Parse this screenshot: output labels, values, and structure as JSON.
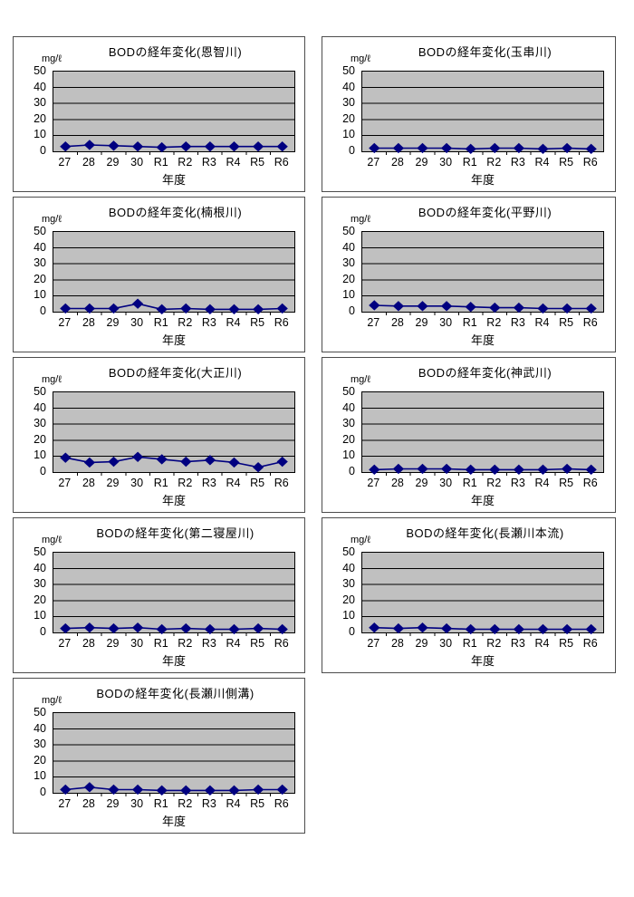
{
  "colors": {
    "page_background": "#ffffff",
    "card_border": "#4d4d4d",
    "plot_area_bg": "#c0c0c0",
    "plot_border": "#000000",
    "gridline": "#000000",
    "series_line": "#000080",
    "marker_fill": "#000080",
    "text": "#000000"
  },
  "style": {
    "marker_shape": "diamond",
    "legend": "none",
    "gridlines": "horizontal"
  },
  "axis": {
    "unit_label": "mg/ℓ",
    "xlabel": "年度",
    "ylim": [
      0,
      50
    ],
    "ytick_labels": [
      "50",
      "40",
      "30",
      "20",
      "10",
      "0"
    ],
    "categories": [
      "27",
      "28",
      "29",
      "30",
      "R1",
      "R2",
      "R3",
      "R4",
      "R5",
      "R6"
    ]
  },
  "chart_data": [
    {
      "type": "line",
      "title": "BODの経年変化(恩智川)",
      "river": "恩智川",
      "xlabel": "年度",
      "ylabel": "mg/ℓ",
      "ylim": [
        0,
        50
      ],
      "categories": [
        "27",
        "28",
        "29",
        "30",
        "R1",
        "R2",
        "R3",
        "R4",
        "R5",
        "R6"
      ],
      "values": [
        3,
        4,
        3.5,
        3,
        2.5,
        3,
        3,
        3,
        3,
        3
      ]
    },
    {
      "type": "line",
      "title": "BODの経年変化(玉串川)",
      "river": "玉串川",
      "xlabel": "年度",
      "ylabel": "mg/ℓ",
      "ylim": [
        0,
        50
      ],
      "categories": [
        "27",
        "28",
        "29",
        "30",
        "R1",
        "R2",
        "R3",
        "R4",
        "R5",
        "R6"
      ],
      "values": [
        2,
        2,
        2,
        2,
        1.5,
        2,
        2,
        1.5,
        2,
        1.5
      ]
    },
    {
      "type": "line",
      "title": "BODの経年変化(楠根川)",
      "river": "楠根川",
      "xlabel": "年度",
      "ylabel": "mg/ℓ",
      "ylim": [
        0,
        50
      ],
      "categories": [
        "27",
        "28",
        "29",
        "30",
        "R1",
        "R2",
        "R3",
        "R4",
        "R5",
        "R6"
      ],
      "values": [
        2,
        2,
        2,
        5,
        1.5,
        2,
        1.5,
        1.5,
        1.5,
        2
      ]
    },
    {
      "type": "line",
      "title": "BODの経年変化(平野川)",
      "river": "平野川",
      "xlabel": "年度",
      "ylabel": "mg/ℓ",
      "ylim": [
        0,
        50
      ],
      "categories": [
        "27",
        "28",
        "29",
        "30",
        "R1",
        "R2",
        "R3",
        "R4",
        "R5",
        "R6"
      ],
      "values": [
        4,
        3.5,
        3.5,
        3.5,
        3,
        2.5,
        2.5,
        2,
        2,
        2
      ]
    },
    {
      "type": "line",
      "title": "BODの経年変化(大正川)",
      "river": "大正川",
      "xlabel": "年度",
      "ylabel": "mg/ℓ",
      "ylim": [
        0,
        50
      ],
      "categories": [
        "27",
        "28",
        "29",
        "30",
        "R1",
        "R2",
        "R3",
        "R4",
        "R5",
        "R6"
      ],
      "values": [
        9,
        6,
        6.5,
        9.5,
        8,
        6.5,
        7.5,
        6,
        3,
        6.5
      ]
    },
    {
      "type": "line",
      "title": "BODの経年変化(神武川)",
      "river": "神武川",
      "xlabel": "年度",
      "ylabel": "mg/ℓ",
      "ylim": [
        0,
        50
      ],
      "categories": [
        "27",
        "28",
        "29",
        "30",
        "R1",
        "R2",
        "R3",
        "R4",
        "R5",
        "R6"
      ],
      "values": [
        1.5,
        2,
        2,
        2,
        1.5,
        1.5,
        1.5,
        1.5,
        2,
        1.5
      ]
    },
    {
      "type": "line",
      "title": "BODの経年変化(第二寝屋川)",
      "river": "第二寝屋川",
      "xlabel": "年度",
      "ylabel": "mg/ℓ",
      "ylim": [
        0,
        50
      ],
      "categories": [
        "27",
        "28",
        "29",
        "30",
        "R1",
        "R2",
        "R3",
        "R4",
        "R5",
        "R6"
      ],
      "values": [
        2.5,
        3,
        2.5,
        3,
        2,
        2.5,
        2,
        2,
        2.5,
        2
      ]
    },
    {
      "type": "line",
      "title": "BODの経年変化(長瀬川本流)",
      "river": "長瀬川本流",
      "xlabel": "年度",
      "ylabel": "mg/ℓ",
      "ylim": [
        0,
        50
      ],
      "categories": [
        "27",
        "28",
        "29",
        "30",
        "R1",
        "R2",
        "R3",
        "R4",
        "R5",
        "R6"
      ],
      "values": [
        3,
        2.5,
        3,
        2.5,
        2,
        2,
        2,
        2,
        2,
        2
      ]
    },
    {
      "type": "line",
      "title": "BODの経年変化(長瀬川側溝)",
      "river": "長瀬川側溝",
      "xlabel": "年度",
      "ylabel": "mg/ℓ",
      "ylim": [
        0,
        50
      ],
      "categories": [
        "27",
        "28",
        "29",
        "30",
        "R1",
        "R2",
        "R3",
        "R4",
        "R5",
        "R6"
      ],
      "values": [
        2,
        3.5,
        2,
        2,
        1.5,
        1.5,
        1.5,
        1.5,
        2,
        2
      ]
    }
  ]
}
